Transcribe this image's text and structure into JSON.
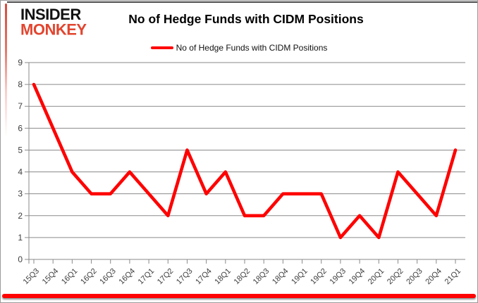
{
  "brand": {
    "line1": "INSIDER",
    "line2": "MONKEY"
  },
  "title": "No of Hedge Funds with CIDM Positions",
  "legend": {
    "label": "No of Hedge Funds with CIDM Positions",
    "color": "#ff0000"
  },
  "chart_data": {
    "type": "line",
    "title": "No of Hedge Funds with CIDM Positions",
    "series_name": "No of Hedge Funds with CIDM Positions",
    "categories": [
      "15Q3",
      "15Q4",
      "16Q1",
      "16Q2",
      "16Q3",
      "16Q4",
      "17Q1",
      "17Q2",
      "17Q3",
      "17Q4",
      "18Q1",
      "18Q2",
      "18Q3",
      "18Q4",
      "19Q1",
      "19Q2",
      "19Q3",
      "19Q4",
      "20Q1",
      "20Q2",
      "20Q3",
      "20Q4",
      "21Q1"
    ],
    "values": [
      8,
      6,
      4,
      3,
      3,
      4,
      3,
      2,
      5,
      3,
      4,
      2,
      2,
      3,
      3,
      3,
      1,
      2,
      1,
      4,
      3,
      2,
      5
    ],
    "xlabel": "",
    "ylabel": "",
    "ylim": [
      0,
      9
    ],
    "y_ticks": [
      0,
      1,
      2,
      3,
      4,
      5,
      6,
      7,
      8,
      9
    ],
    "grid": true,
    "legend_position": "top",
    "line_color": "#ff0000",
    "gridline_color": "#8a8a8a",
    "axis_color": "#8a8a8a",
    "axis_text_color": "#3d3d3d"
  },
  "frame": {
    "bottom_bar_color": "#fe0100",
    "top_edge_color": "#4c4c4c"
  }
}
